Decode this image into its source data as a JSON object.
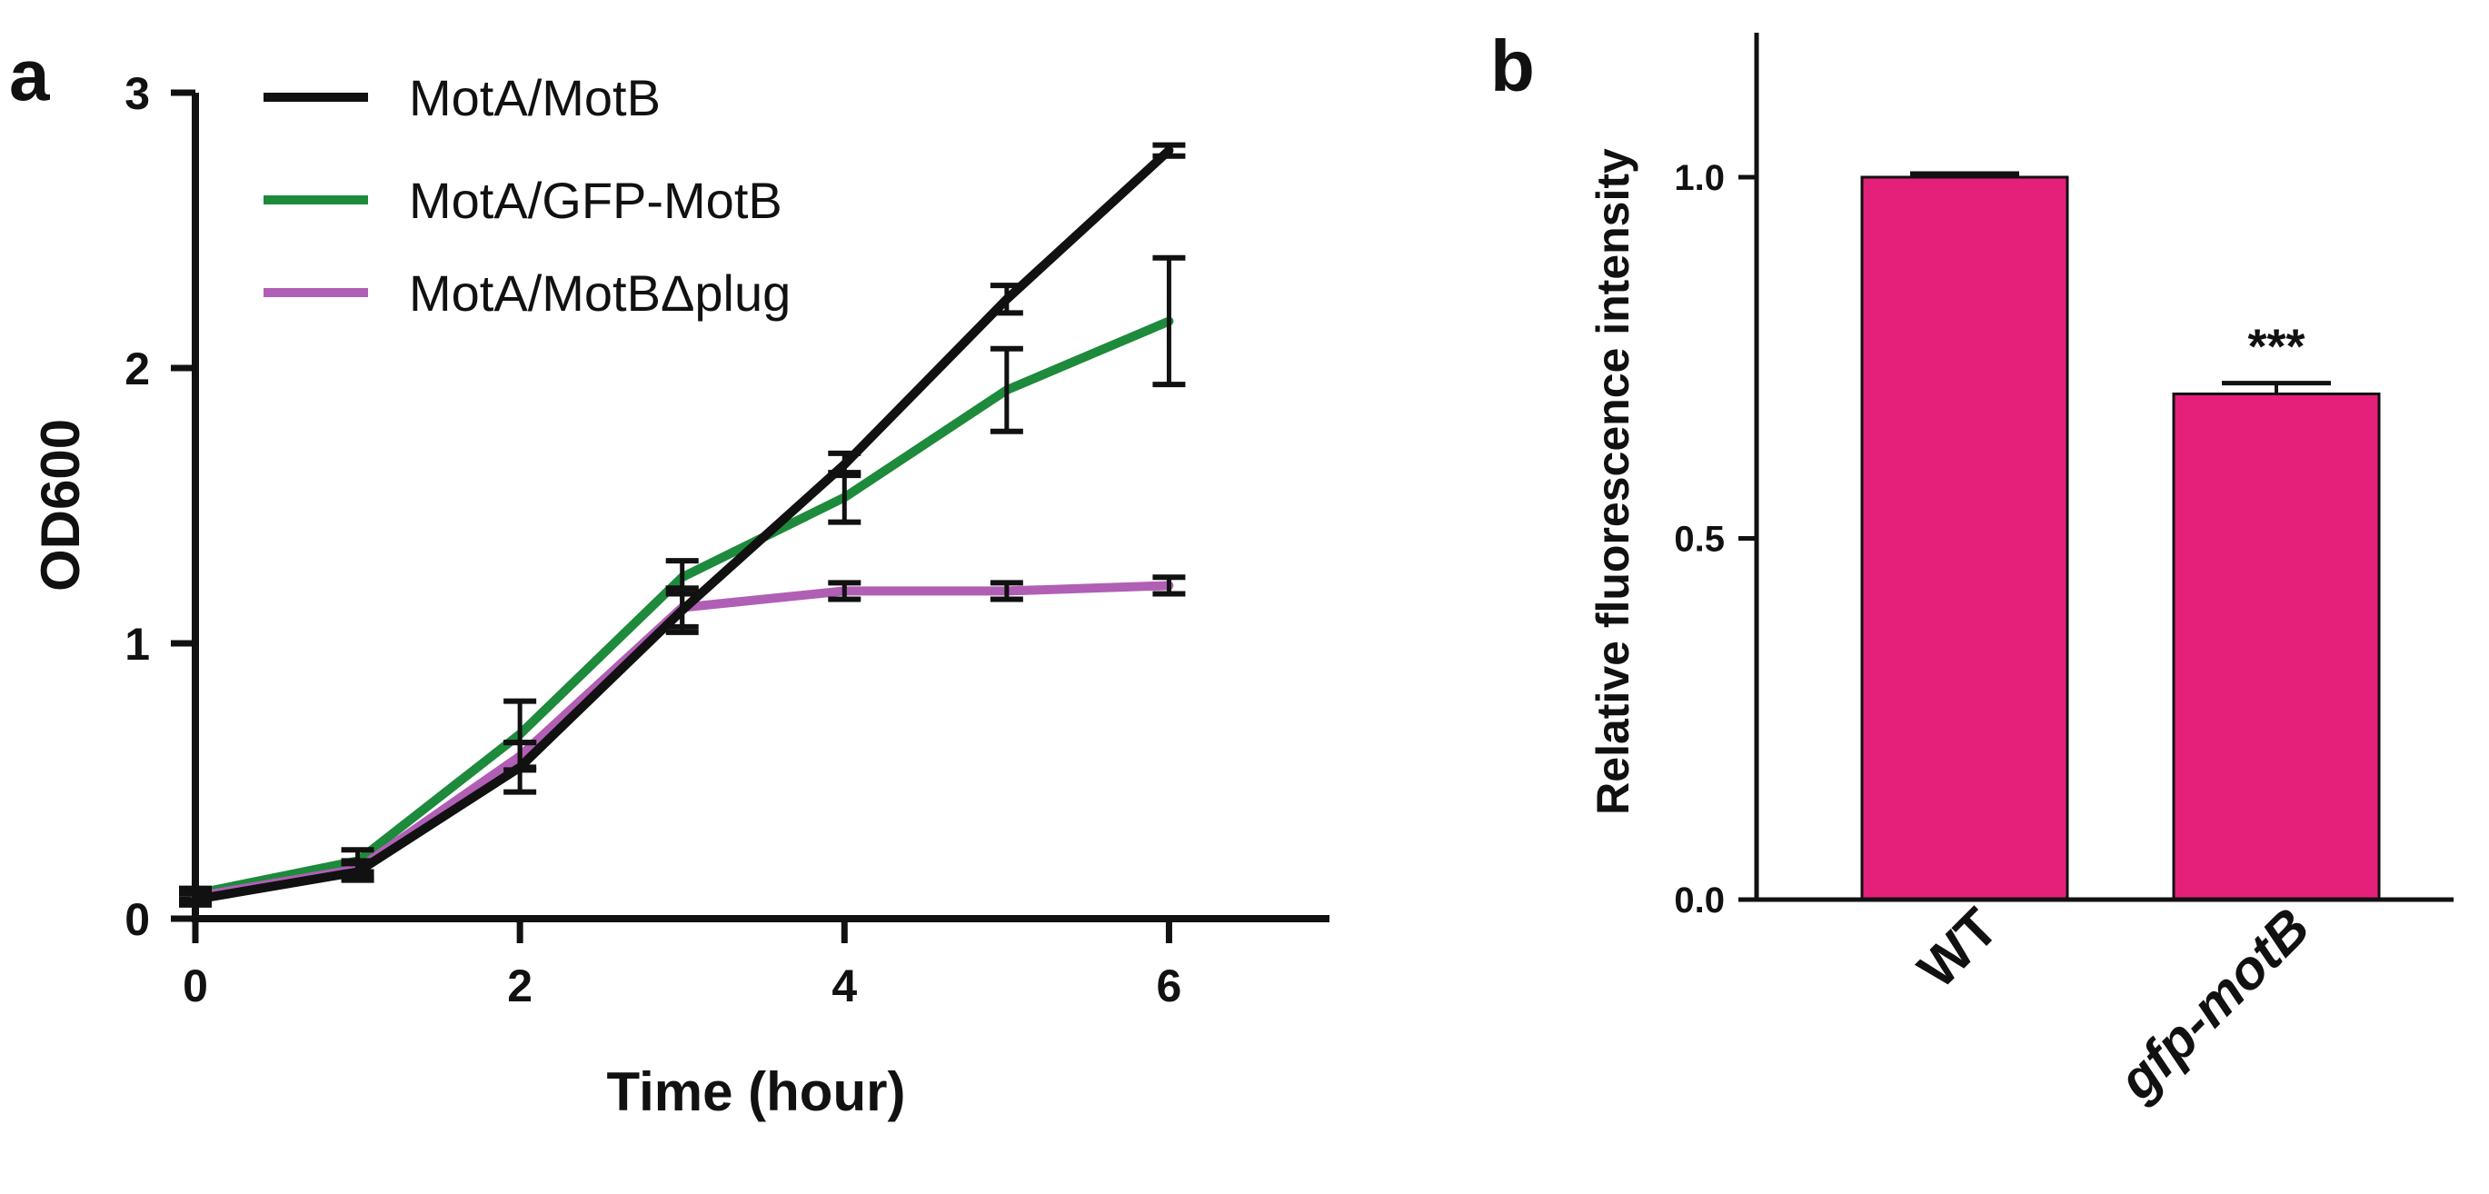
{
  "chart_data": [
    {
      "panel": "a",
      "type": "line",
      "xlabel": "Time (hour)",
      "ylabel": "OD600",
      "xlim": [
        0,
        7
      ],
      "ylim": [
        0,
        3
      ],
      "xticks": [
        0,
        2,
        4,
        6
      ],
      "yticks": [
        0,
        1,
        2,
        3
      ],
      "grid": false,
      "legend_position": "top-left",
      "series": [
        {
          "name": "MotA/GFP-MotB",
          "color": "#1e8a3c",
          "x": [
            0,
            1,
            2,
            3,
            4,
            5,
            6
          ],
          "y": [
            0.09,
            0.21,
            0.67,
            1.24,
            1.53,
            1.92,
            2.17
          ],
          "err": [
            0.02,
            0.04,
            0.12,
            0.06,
            0.09,
            0.15,
            0.23
          ]
        },
        {
          "name": "MotA/MotBΔplug",
          "color": "#b05fb5",
          "x": [
            0,
            1,
            2,
            3,
            4,
            5,
            6
          ],
          "y": [
            0.08,
            0.18,
            0.59,
            1.13,
            1.19,
            1.19,
            1.21
          ],
          "err": [
            0.02,
            0.03,
            0.05,
            0.07,
            0.03,
            0.03,
            0.03
          ]
        },
        {
          "name": "MotA/MotB",
          "color": "#111111",
          "x": [
            0,
            1,
            2,
            3,
            4,
            5,
            6
          ],
          "y": [
            0.07,
            0.17,
            0.55,
            1.12,
            1.65,
            2.25,
            2.79
          ],
          "err": [
            0.02,
            0.03,
            0.09,
            0.08,
            0.04,
            0.05,
            0.02
          ]
        }
      ],
      "legend_order": [
        "MotA/MotB",
        "MotA/GFP-MotB",
        "MotA/MotBΔplug"
      ]
    },
    {
      "panel": "b",
      "type": "bar",
      "categories": [
        "WT",
        "gfp-motB"
      ],
      "values": [
        1.0,
        0.7
      ],
      "err": [
        0.005,
        0.015
      ],
      "ylabel": "Relative fluorescence intensity",
      "xlabel": "",
      "ylim": [
        0,
        1.2
      ],
      "yticks": [
        "0.0",
        "0.5",
        "1.0"
      ],
      "bar_color": "#e5207a",
      "annotations": [
        {
          "category": "gfp-motB",
          "text": "***"
        }
      ],
      "grid": false
    }
  ]
}
